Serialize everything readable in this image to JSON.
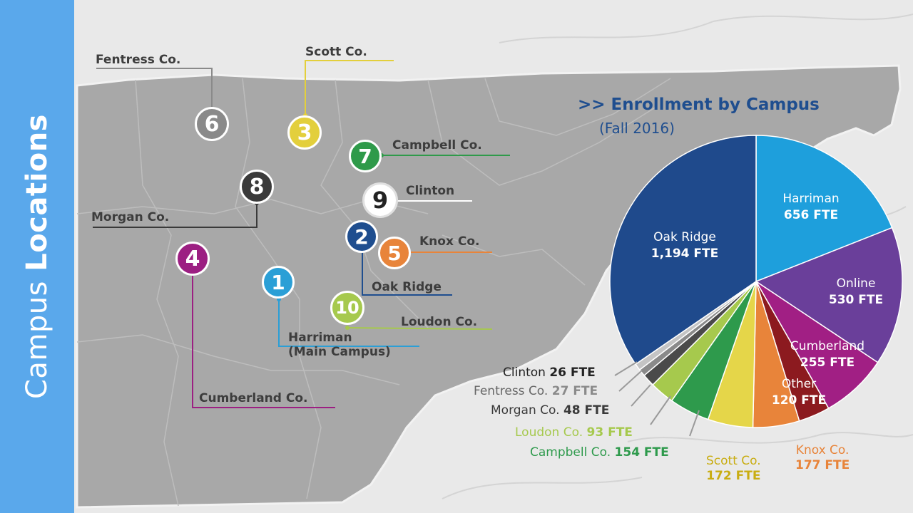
{
  "sidebar": {
    "title_regular": "Campus",
    "title_bold": "Locations",
    "color": "#5aa8eb"
  },
  "campuses": [
    {
      "num": "1",
      "label": "Harriman",
      "label2": "(Main Campus)",
      "color": "#2b9fd6"
    },
    {
      "num": "2",
      "label": "Oak Ridge",
      "color": "#1f4e8f"
    },
    {
      "num": "3",
      "label": "Scott Co.",
      "color": "#e3cf3c"
    },
    {
      "num": "4",
      "label": "Cumberland Co.",
      "color": "#9c1f82"
    },
    {
      "num": "5",
      "label": "Knox Co.",
      "color": "#e8843a"
    },
    {
      "num": "6",
      "label": "Fentress Co.",
      "color": "#8a8a8a"
    },
    {
      "num": "7",
      "label": "Campbell Co.",
      "color": "#2f9a4a"
    },
    {
      "num": "8",
      "label": "Morgan Co.",
      "color": "#3a3a3a"
    },
    {
      "num": "9",
      "label": "Clinton",
      "color": "#ffffff"
    },
    {
      "num": "10",
      "label": "Loudon Co.",
      "color": "#a6c94d"
    }
  ],
  "chart_data": {
    "type": "pie",
    "title": ">> Enrollment by Campus",
    "subtitle": "(Fall 2016)",
    "slices": [
      {
        "name": "Harriman",
        "value": 656,
        "value_label": "656 FTE",
        "color": "#1e9fdc"
      },
      {
        "name": "Online",
        "value": 530,
        "value_label": "530 FTE",
        "color": "#6a3f9a"
      },
      {
        "name": "Cumberland",
        "value": 255,
        "value_label": "255 FTE",
        "color": "#a11f84"
      },
      {
        "name": "Other",
        "value": 120,
        "value_label": "120 FTE",
        "color": "#8c1a1f"
      },
      {
        "name": "Knox Co.",
        "value": 177,
        "value_label": "177 FTE",
        "color": "#e8843a"
      },
      {
        "name": "Scott Co.",
        "value": 172,
        "value_label": "172 FTE",
        "color": "#e5d649"
      },
      {
        "name": "Campbell Co.",
        "value": 154,
        "value_label": "154 FTE",
        "color": "#2e9a4c"
      },
      {
        "name": "Loudon Co.",
        "value": 93,
        "value_label": "93 FTE",
        "color": "#a6c94d"
      },
      {
        "name": "Morgan Co.",
        "value": 48,
        "value_label": "48 FTE",
        "color": "#4a4a4a"
      },
      {
        "name": "Fentress Co.",
        "value": 27,
        "value_label": "27 FTE",
        "color": "#8a8a8a"
      },
      {
        "name": "Clinton",
        "value": 26,
        "value_label": "26 FTE",
        "color": "#c4c4c4"
      },
      {
        "name": "Oak Ridge",
        "value": 1194,
        "value_label": "1,194 FTE",
        "color": "#1f4a8c"
      }
    ]
  }
}
